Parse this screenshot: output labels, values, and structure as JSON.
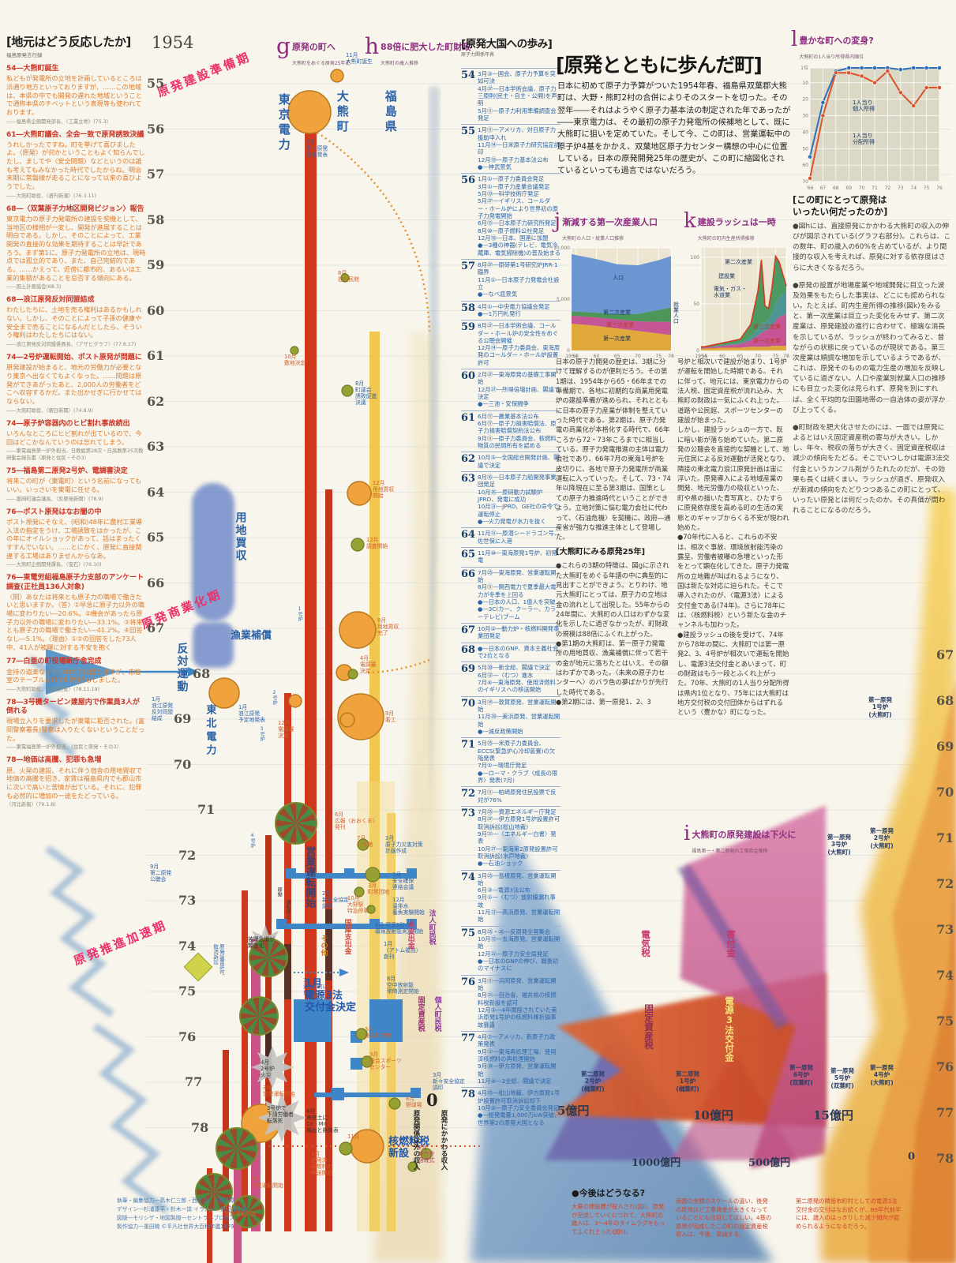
{
  "left_panel": {
    "title": "[地元はどう反応したか]",
    "subtitle": "福島原発言行録",
    "quotes": [
      {
        "h": "54―大熊町誕生",
        "b": "私どもが発電所の立地を計画しているところは浜通り地方といっておりますが、……この地域は、本県の中でも開発の遅れた地域ということで通称本県のチベットという表現等も使われております。",
        "s": "――福島県企画開発部長、〈工業立地〉(75.3)"
      },
      {
        "h": "61―大熊町議会、全会一致で原発誘致決議",
        "b": "うれしかったですね。町を挙げて喜びましたよ。〈原発〉が何かということもよく知らんでしたし、ましてや〈安全問題〉などというのは誰も考えてもみなかった時代でしたからね。明治末期に常磐線が走ることになって以来の喜びようでした。",
        "s": "――大熊町助役、〈週刊新潮〉(76.3.11)"
      },
      {
        "h": "68―〈双葉原子力地区開発ビジョン〉報告",
        "b": "東京電力の原子力発電所の建設を契機として、当地区の様相が一変し、開発が進展することは明白である。しかし、そのことによって、工業開発の直接的な効果を期待することは早計であろう。まず第1に、原子力発電所の立地は、現時点では孤立的であり、また、自己完結的である。……かえって、近傍に都市的、あるいは工業的集積があることを忌否する傾向にある。",
        "s": "――国土計画協会(68.3)"
      },
      {
        "h": "68―浪江原発反対同盟結成",
        "b": "わたしたちに、土地を売る権利はあるかもしれない。しかし、そのことによって子孫の健康や安全まで売ることになるんだとしたら、そういう権利はわたしたちにはない。",
        "s": "――浪江原発反対同盟委員長、〈アサヒグラフ〉(77.6.17)"
      },
      {
        "h": "74―2号炉運転開始、ポスト原発が問題に",
        "b": "原発建設が始まると、地元の労働力が必要となり東京へ出なくてもよくなった。……問題は原発ができあがったあと、2,000人の労働者をどこへ収容するかだ。また出かせぎに行かせてはならない。",
        "s": "――大熊町助役、〈朝日新聞〉(74.8.9)"
      },
      {
        "h": "74―原子炉容器内のヒビ割れ事故続出",
        "b": "いろんなところにヒビ割れが出ているので、今回はどこかなんていうのは忘れてしまう。",
        "s": "――東電福島第一炉外担当、日教組第28次・日高教第25次教研集会報告書〈原発と住民・その3〉"
      },
      {
        "h": "75―福島第二原発2号炉、電調審決定",
        "b": "将来この町が〈東電町〉という名前になってもいい。いっさいを東電に任せる。",
        "s": "――富岡町議会議長、〈反原発新聞〉(78.9)"
      },
      {
        "h": "76―ポスト原発はなお闇の中",
        "b": "ポスト原発にそなえ、(昭和)48年に農村工業導入法の指定をうけ、工場誘致をはかったが、この年にオイルショックがあって、話はまったくすすんでいない。……とにかく、原発に直接関連する工場はありませんからなあ。",
        "s": "――大熊町企画開発課長、〈宝石〉(76.10)"
      },
      {
        "h": "76―東電労組福島原子力支部のアンケート調査(正社員136人対象)",
        "b": "〈問〉あなたは将来とも原子力の職場で働きたいと思いますか。〈答〉①早急に原子力以外の職場に変わりたい―20.6%。②機会があったら原子力以外の職場に変わりたい―33.1%。③将来とも原子力の職場で働きたい―41.2%。④回答なし―5.1%。〈理由〉①②の回答をした73人中、41人が被曝に対する不安を抱く",
        "s": ""
      },
      {
        "h": "77―白亜の町役場新庁舎完成",
        "b": "金持の道楽などといわれては困りますが、応接室のテーブルだけで80万円もしました。",
        "s": "――大熊町助役、〈福島民友〉(78.11.19)"
      },
      {
        "h": "78―3号機タービン建屋内で作業員3人が倒れる",
        "b": "現場立入りを要求したが東電に拒否された。(富岡警察署長)警察は入りたくないということだった。",
        "s": "――東電福島第一炉外担当、〈住民と原発・その3〉"
      },
      {
        "h": "78―地価は高騰、犯罪も急増",
        "b": "原、火発の建設、それに伴う宿舎の用地買収で地価の高騰を招き、家賃は福島県内でも郡山市に次いで高いと苦情が出ている。それに、犯罪も必然的に増加の一途をたどっている。",
        "s": "〈河北新報〉(79.1.8)"
      }
    ]
  },
  "center": {
    "start_year": "1954",
    "phases": [
      "原発建設準備期",
      "原発商業化期",
      "原発推進加速期"
    ],
    "g": {
      "letter": "g",
      "title": "原発の町へ",
      "sub": "大熊町をめぐる原発25年史"
    },
    "h": {
      "letter": "h",
      "title": "88倍に肥大した町財政",
      "sub": "大熊町の歳入推移"
    },
    "years_left": [
      "55",
      "56",
      "57",
      "58",
      "59",
      "60",
      "61",
      "62",
      "63",
      "64",
      "65",
      "66",
      "67",
      "68",
      "69",
      "70",
      "71",
      "72",
      "73",
      "74",
      "75",
      "76",
      "77",
      "78"
    ],
    "years_right": [
      "67",
      "68",
      "69",
      "70",
      "71",
      "72",
      "73",
      "74",
      "75",
      "76",
      "77",
      "78"
    ],
    "labels": [
      "東京電力",
      "大熊町",
      "福島県",
      "11月\n大熊町誕生",
      "5月\n第一原発\n計画発表",
      "8月\n旧公民館",
      "10月\n敷地決定",
      "8月\n町議会\n誘致促進\n決議",
      "12月\n用地買収\n開始",
      "12月\n調査開始",
      "8月\n用地買収\n完了",
      "4月\n電調審\n決定",
      "9月\n着工",
      "12月\n電調審\n決定",
      "用地買収",
      "漁業補償",
      "反対運動",
      "東北電力",
      "1月\n浪江原発\n反対同盟\n結成",
      "1月\n浪江原発\n予定地発表",
      "1号炉",
      "2号炉",
      "3号炉",
      "4号炉",
      "営業運転開始",
      "6月\n広報〈おおくま〉\n発刊",
      "7月\n公民館",
      "3月\n原子力災害対策\n計画作成",
      "2月\n新安全協定\n調印",
      "10月\n大野駅\n特急停車",
      "3月\n町営団地",
      "1月\n安全確保\n連絡会議",
      "12月\n温排水\n養魚実験開始",
      "8月 双葉5町の\n環境放射能測定開始",
      "1月\n〈アトム福島〉\n創刊",
      "8月\n空中放射能\n常時測定開始",
      "1月\n双葉5町に\n協力金",
      "国庫支出金",
      "その他",
      "県支出金",
      "法人町民税",
      "個人町民税",
      "固定資産税",
      "1月\n電源3法\n交付金決定",
      "3月\n総合中学校",
      "3月\n総合スポーツ\nセンター",
      "3月\n新々安全協定\n調印",
      "8月\n野球場",
      "4月\n2号炉\n火災",
      "3号炉で\n下請労働者\n転落死",
      "被曝急増が\n顕在化",
      "8月\n海底土に\nCo・Mn\n検出と県発表",
      "1月\n使用済\n核燃料の\n移送開始",
      "11月",
      "核燃料税\n新設",
      "2月\n新庁舎\n落成式",
      "10月\n営業運転開始",
      "4月\n営業運転開始",
      "3月\n営業運転開始",
      "原発関係以外の収入",
      "0",
      "原発にかかわる収入",
      "9月\n第二原発\n公聴会",
      "原発設置許可\n取消訴訟",
      "稼働",
      "運転停止"
    ]
  },
  "chronology": {
    "title": "[原発大国への歩み]",
    "subtitle": "原子力関係年表",
    "entries": [
      {
        "y": "54",
        "t": "3月③―国会、原子力予算を突如可決\n4月㉗―日本学術会議、原子力三原則(民主・自主・公開)を声明\n5月⑪―原子力利用準備調査会発足"
      },
      {
        "y": "55",
        "t": "1月⑪―アメリカ、対日原子力援助申入れ\n11月⑭―日米原子力研究協定調印\n12月⑲―原子力基本法公布\n●―神武景気"
      },
      {
        "y": "56",
        "t": "1月①―原子力委員会発足\n3月①―原子力産業会議発足\n5月⑲―科学技術庁発足\n5月㉗―イギリス、コールダー・ホール炉により世界初の原子力発電開始\n6月⑮―日本原子力研究所発足\n8月⑩―原子燃料公社発足\n12月⑱―日本、国連に加盟\n●―3種の神器(テレビ、電気冷蔵庫、電気掃除機)の普及始まる"
      },
      {
        "y": "57",
        "t": "8月㉗―原研第1号研究炉JRR-1臨界\n11月①―日本原子力発電会社設立\n●―なべ底景気"
      },
      {
        "y": "58",
        "t": "4月①―中央電力協議会発足\n●―1万円札発行"
      },
      {
        "y": "59",
        "t": "8月㉗―日本学術会議、コールダー・ホール炉の安全性をめぐる公聴会開催\n12月⑭―原子力委員会、東海原発のコールダー・ホール炉設置許可"
      },
      {
        "y": "60",
        "t": "2月㉗―東海原発の基礎工事開始\n12月㉗―所得倍増計画、閣議で決定\n●―三池・安保闘争"
      },
      {
        "y": "61",
        "t": "6月⑰―農業基本法公布\n6月⑰―原子力損害賠償法、原子力損害賠償契約法公布\n9月⑪―原子力委員会、核燃料物質の民間所有を認める"
      },
      {
        "y": "62",
        "t": "10月⑤―全国総合開発計画、閣議で決定"
      },
      {
        "y": "63",
        "t": "8月⑯―日本原子力船開発事業団発足\n10月㉖―原研動力試験炉JPRD、発電に成功\n10月㉛―JPRD、GE社の命令で運転停止\n●―火力発電が水力を抜く"
      },
      {
        "y": "64",
        "t": "11月⑫―原潜シードラゴン号、佐世保に入港"
      },
      {
        "y": "65",
        "t": "11月⑩―東海原発1号炉、初発電"
      },
      {
        "y": "66",
        "t": "7月㉕―東海原発、営業運転開始\n8月⑪―関西電力で夏季最大電力が冬季を上回る\n●―日本の人口、1億人を突破\n●―3C(カー、クーラー、カラーテレビ)ブーム"
      },
      {
        "y": "67",
        "t": "10月②―動力炉・核燃料開発事業団発足"
      },
      {
        "y": "68",
        "t": "●―日本のGNP、資本主義社会で2位となる"
      },
      {
        "y": "69",
        "t": "5月㉚―新全総、閣議で決定\n6月⑫―〈むつ〉進水\n7月④―東海原発、使用済燃料のイギリスへの移送開始"
      },
      {
        "y": "70",
        "t": "3月⑭―敦賀原発、営業運転開始\n11月㉘―美浜原発、営業運転開始\n●―減反政策開始"
      },
      {
        "y": "71",
        "t": "5月㉕―米原子力委員会、ECCS(緊急炉心冷却装置)の欠陥発表\n7月①―環境庁発足\n●―ローマ・クラブ〈成長の限界〉発表(7月)"
      },
      {
        "y": "72",
        "t": "7月⑪―柏崎原発住民投票で反対が76%"
      },
      {
        "y": "73",
        "t": "7月㉕―資源エネルギー庁発足\n8月㉗―伊方原発1号炉設置許可取消訴訟(松山地裁)\n9月㉑―〈エネルギー白書〉発表\n10月㉗―東海第2原発設置許可取消訴訟(水戸地裁)\n●―石油ショック"
      },
      {
        "y": "74",
        "t": "3月㉕―島根原発、営業運転開始\n6月③―電源3法公布\n9月①―〈むつ〉放射線漏れ事故\n11月⑬―高浜原発、営業運転開始"
      },
      {
        "y": "75",
        "t": "8月㉕・㉖―反原発全国集会\n10月⑮―玄海原発、営業運転開始\n12月㉒―原子力安全局発足\n●―日本のGNPの伸び、戦後初のマイナスに"
      },
      {
        "y": "76",
        "t": "3月⑪―浜岡原発、営業運転開始\n8月㉑―自治省、福井県の核燃料税新設を認可\n12月③―4年間隠されていた美浜原発1号炉の核燃料棒折損事故暴露"
      },
      {
        "y": "77",
        "t": "4月⑦―アメリカ、新原子力政策発表\n9月⑫―東海再処理工場、使用済核燃料の再処理開始\n9月㉚―伊方原発、営業運転開始\n11月④―3全総、閣議で決定"
      },
      {
        "y": "78",
        "t": "4月㉕―松山地裁、伊方原発1号炉設置許可取消訴訟却下\n10月④―原子力安全委員会発足\n●―総発電量1,000万kW突破、世界第2の原発大国となる"
      }
    ]
  },
  "article": {
    "title": "[原発とともに歩んだ町]",
    "intro": "日本に初めて原子力予算がついた1954年春、福島県双葉郡大熊町は、大野・熊町2村の合併によりそのスタートを切った。その翌年――それはようやく原子力基本法の制定された年であったが――東京電力は、その最初の原子力発電所の候補地として、既に大熊町に狙いを定めていた。そして今、この町は、営業運転中の原子炉4基をかかえ、双葉地区原子力センター構想の中心に位置している。日本の原発開発25年の歴史が、この町に縮図化されているといっても過言ではないだろう。",
    "col1a": "日本の原子力開発の歴史は、3期に分けて理解するのが便利だろう。その第1期は、1954年から65・66年までの準備期で、各地に初期的な商業用発電炉の建設準備が進められ、それとともに日本の原子力産業が体制を整えていった時代である。第2期は、原子力発電の商業化が本格化する時代で、66年ころから72・73年ころまでに相当している。原子力発電推進の主体は電力会社であり、66年7月の東海1号炉を皮切りに、各地で原子力発電所が商業運転に入っていった。そして、73・74年以降現在に至る第3期は、国策としての原子力推進時代ということができよう。立地対策に悩む電力会社に代わって、〈石油危機〉を契機に、政府―通産省が強力な推進主体として登場した。",
    "col1_heading": "[大熊町にみる原発25年]",
    "col1b": "●これらの3期の特徴は、図gに示された大熊町をめぐる年譜の中に典型的に見出すことができよう。とりわけ、地元大熊町にとっては、原子力の立地は金の流れとして出現した。55年からの24年間に、大熊町の人口はわずかな変化を示したに過ぎなかったが、町財政の規模は88倍にふくれ上がった。\n●第1期の大熊町は、第一原子力発電所の用地買収、漁業補償に伴って若干の金が地元に落ちたとはいえ、その額はわずかであった。〈未来の原子力センターへ〉のバラ色の夢ばかりが先行した時代である。\n●第2期には、第一原発1、2、3",
    "col2": "号炉と相次いで建設が始まり、1号炉が運転を開始した時期である。それに伴って、地元には、東京電力からの法人税、固定資産税が流れ込み、大熊町の財政は一気にふくれ上った。道路や公民館、スポーツセンターの建設が始まった。\nしかし、建設ラッシュの一方で、既に暗い影が落ち始めていた。第二原発の公聴会を直接的な契機として、地元住民による反対運動が活発となり、隣接の東北電力浪江原発計画は宙に浮いた。原発導入による地域産業の開発、地元労働力の吸収といった、町や県の描いた青写真と、ひたすらに原発依存度を高める町の生活の実態とのギャップからくる不安が現われ始めた。\n●70年代に入ると、これらの不安は、相次ぐ事故、環境放射能汚染の露呈、労働者被曝の急増といった形をとって顕在化してきた。原子力発電所の立地難が叫ばれるようになり、国は新たな対応に迫られた。そこで導入されたのが、〈電源3法〉による交付金である(74年)。さらに78年には、〈核燃料税〉という新たな金のチャンネルも加わった。\n●建設ラッシュの後を受けて、74年から78年の間に、大熊町では第一原発2、3、4号炉が相次いで運転を開始し、電源3法交付金とあいまって、町の財政はもう一段とふくれ上がった。70年、大熊町の1人当り分配所得は県内1位となり、75年には大熊町は地方交付税の交付団体からはずれるという〈豊かな〉町になった。"
  },
  "charts": {
    "j": {
      "type": "area",
      "letter": "j",
      "title": "漸減する第一次産業人口",
      "subtitle": "大熊町の人口・就業人口推移",
      "bg": "#ece5d2",
      "ymax": 10000,
      "x": [
        1954,
        1955,
        1960,
        1965,
        1970,
        1975,
        1978
      ],
      "x_ticks": [
        [
          1954,
          "1954"
        ],
        [
          1955,
          "55"
        ],
        [
          1960,
          "60"
        ],
        [
          1965,
          "65"
        ],
        [
          1970,
          "70"
        ],
        [
          1975,
          "75"
        ],
        [
          1978,
          "78"
        ]
      ],
      "y_ticks": [
        [
          10000,
          "10,000"
        ],
        [
          5000,
          "5,000"
        ],
        [
          0,
          "0"
        ]
      ],
      "stack": [
        {
          "name": "第一次産業",
          "color": "#e0a42e",
          "values": [
            2600,
            2580,
            2400,
            2150,
            1900,
            1650,
            1500
          ]
        },
        {
          "name": "第三次産業",
          "color": "#c2498f",
          "values": [
            780,
            790,
            820,
            880,
            950,
            1150,
            1300
          ]
        },
        {
          "name": "第二次産業",
          "color": "#3f8f4f",
          "values": [
            420,
            430,
            460,
            520,
            720,
            1150,
            1400
          ]
        }
      ],
      "top_band": {
        "name": "人口",
        "color": "#5f8fd0",
        "values": [
          9400,
          9300,
          8900,
          8400,
          8300,
          8800,
          9200
        ]
      },
      "employment_label": "就業人口"
    },
    "k": {
      "type": "area",
      "letter": "k",
      "title": "建設ラッシュは一時",
      "subtitle": "大熊町の町内生産所得推移",
      "bg": "#ece5d2",
      "ymax": 110,
      "total_outline": "#d23b1e",
      "x": [
        1954,
        1955,
        1960,
        1965,
        1968,
        1970,
        1971,
        1972,
        1973,
        1974,
        1975,
        1976,
        1978
      ],
      "x_ticks": [
        [
          1954,
          "1954"
        ],
        [
          1955,
          "55"
        ],
        [
          1960,
          "60"
        ],
        [
          1965,
          "65"
        ],
        [
          1970,
          "70"
        ],
        [
          1975,
          "75"
        ],
        [
          1978,
          "78"
        ]
      ],
      "y_ticks": [
        [
          100,
          "100"
        ],
        [
          50,
          "50"
        ],
        [
          0,
          "0"
        ]
      ],
      "stack": [
        {
          "name": "第一次産業",
          "color": "#e0a42e",
          "values": [
            2,
            2,
            3,
            3,
            4,
            4,
            4,
            4,
            4,
            5,
            5,
            5,
            5
          ]
        },
        {
          "name": "第三次産業",
          "color": "#c2498f",
          "values": [
            1,
            1,
            2,
            4,
            7,
            12,
            15,
            17,
            19,
            22,
            27,
            31,
            34
          ]
        },
        {
          "name": "電気・ガス・水道業",
          "color": "#3f8f8f",
          "values": [
            0,
            0,
            1,
            1,
            3,
            7,
            10,
            9,
            10,
            13,
            17,
            21,
            24
          ]
        },
        {
          "name": "建設業",
          "color": "#3f9358",
          "values": [
            1,
            1,
            2,
            4,
            14,
            40,
            68,
            18,
            12,
            28,
            52,
            38,
            6
          ]
        }
      ],
      "second_industry_label": "第二次産業"
    },
    "l": {
      "type": "line",
      "letter": "l",
      "title": "豊かな町への変身?",
      "subtitle": "大熊町の1人当り所得県内順位",
      "bg": "#dcd8c6",
      "ymax": 70,
      "x_labels": [
        "'66",
        "67",
        "68",
        "69",
        "70",
        "71",
        "72",
        "73",
        "74",
        "75",
        "76"
      ],
      "y_ticks": [
        [
          1,
          "1位"
        ],
        [
          10,
          "10"
        ],
        [
          20,
          "20"
        ],
        [
          30,
          "30"
        ],
        [
          40,
          "40"
        ],
        [
          50,
          "50"
        ],
        [
          60,
          "60"
        ],
        [
          70,
          "70"
        ]
      ],
      "series": [
        {
          "name": "1人当り\n個人所得",
          "color": "#d9542b",
          "values": [
            68,
            30,
            4,
            4,
            6,
            10,
            3,
            16,
            24,
            13,
            13
          ]
        },
        {
          "name": "1人当り\n分配所得",
          "color": "#2f6fb8",
          "values": [
            55,
            22,
            3,
            1,
            1,
            1,
            1,
            2,
            1,
            1,
            1
          ]
        }
      ]
    }
  },
  "section_i": {
    "letter": "i",
    "title": "大熊町の原発建設は下火に",
    "subtitle": "福島第一・第二原発の工事資金推移",
    "money": [
      "5億円",
      "10億円",
      "15億円"
    ],
    "money_bottom": [
      "1000億円",
      "500億円",
      "0"
    ],
    "flows": [
      "電気税",
      "寄付金",
      "固定資産税",
      "電源3法交付金"
    ],
    "reactors": [
      "第一原発\n1号炉\n(大熊町)",
      "第一原発\n2号炉\n(大熊町)",
      "第一原発\n3号炉\n(大熊町)",
      "第一原発\n4号炉\n(大熊町)",
      "第一原発\n5号炉\n(双葉町)",
      "第一原発\n6号炉\n(双葉町)",
      "第二原発\n1号炉\n(楢葉町)",
      "第二原発\n2号炉\n(楢葉町)"
    ]
  },
  "right_column": {
    "title": "[この町にとって原発は\nいったい何だったのか]",
    "paragraphs": [
      "●図hには、直接原発にかかわる大熊町の収入の伸びが図示されている(グラフ右部分)。これらは、この数年、町の歳入の60%を占めているが、より間接的な収入を考えれば、原発に対する依存度はさらに大きくなるだろう。",
      "●原発の設置が地場産業や地域開発に目立った波及効果をもたらした事実は、どこにも認められない。たとえば、町内生産所得の推移(図k)をみると、第一次産業は目立った変化をみせず、第二次産業は、原発建設の進行に合わせて、極端な消長を示しているが、ラッシュが終わってみると、昔ながらの状態に戻っているのが現状である。第三次産業は順調な増加を示しているようであるが、これは、原発そのものの電力生産の増加を反映しているに過ぎない。人口や産業別就業人口の推移にも目立った変化は見られず、原発を別にすれば、全く平均的な田園地帯の一自治体の姿が浮かび上ってくる。",
      "●町財政を肥大化させたのには、一面では原発によるとはいえ固定資産税の寄与が大きい。しかし、年々、税収の落ちが大きく、固定資産税収は減少の傾向をたどる。そこでいつしかは電源3法交付金というカンフル剤がうたれたのだが、その効果も長くは続くまい。ラッシュが過ぎ、原発収入が漸減の傾向をたどりつつあるこの町にとって、いったい原発とは何だったのか。その真価が問われることになるのだろう。"
    ]
  },
  "future": {
    "heading": "●今後はどうなる?",
    "notes": [
      "大量の建設費が投入され(図i)、原発が完成していくにつれて、大熊町の歳入は、3〜4年のタイムラグをもってふくれ上った(図h)。",
      "両図の金額のスケールの違い、後発の原発ほど工事資金が大きくなっていることにも注目してほしい。4基の原発が完成したこの町の固定資産税収入は、今後、漸減する。",
      "第二原発の隣接市町村としての電源3法交付金の交付はなお続くが、80年代前半には、歳入のはっきりした減少傾向が認められるようになるだろう。"
    ]
  },
  "credits": {
    "lines": [
      "執筆・編集協力―高木仁三郎・西尾漠・中里英章",
      "デザイン―杉浦康平・鈴木一誌 イラスト―渡辺富士雄",
      "図版―モリシゲ・地図製版―セントラルプロセス",
      "製作協力―重田暁 ©平凡社世界大百科年鑑1979"
    ]
  }
}
